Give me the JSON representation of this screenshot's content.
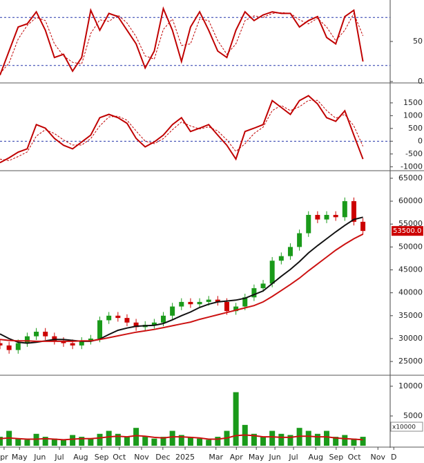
{
  "chart_data": [
    {
      "type": "line",
      "xlim": [
        0,
        86
      ],
      "ylim": [
        0,
        100
      ],
      "yticks": [
        0,
        50
      ],
      "hlines": [
        80,
        20
      ],
      "hline_color": "#2233aa",
      "x": [
        0,
        2,
        4,
        6,
        8,
        10,
        12,
        14,
        16,
        18,
        20,
        22,
        24,
        26,
        28,
        30,
        32,
        34,
        36,
        38,
        40,
        42,
        44,
        46,
        48,
        50,
        52,
        54,
        56,
        58,
        60,
        62,
        64,
        66,
        68,
        70,
        72,
        74,
        76,
        78,
        80
      ],
      "series": [
        {
          "color": "#c00000",
          "style": "solid",
          "values": [
            8,
            38,
            68,
            72,
            87,
            64,
            30,
            34,
            13,
            30,
            89,
            64,
            85,
            81,
            64,
            47,
            17,
            38,
            91,
            64,
            25,
            68,
            87,
            64,
            38,
            30,
            64,
            87,
            76,
            83,
            87,
            85,
            85,
            68,
            76,
            81,
            55,
            47,
            81,
            89,
            25
          ]
        },
        {
          "color": "#c00000",
          "style": "dashed",
          "values": [
            10,
            23,
            53,
            70,
            80,
            76,
            47,
            32,
            24,
            22,
            60,
            77,
            75,
            83,
            73,
            56,
            32,
            28,
            65,
            78,
            45,
            47,
            78,
            76,
            51,
            34,
            47,
            76,
            82,
            80,
            85,
            86,
            85,
            77,
            72,
            79,
            68,
            51,
            64,
            85,
            57
          ]
        }
      ]
    },
    {
      "type": "line",
      "xlim": [
        0,
        86
      ],
      "ylim": [
        -1100,
        2200
      ],
      "yticks": [
        -1000,
        -500,
        0,
        500,
        1000,
        1500
      ],
      "hlines": [
        0
      ],
      "hline_color": "#2233aa",
      "x": [
        0,
        2,
        4,
        6,
        8,
        10,
        12,
        14,
        16,
        18,
        20,
        22,
        24,
        26,
        28,
        30,
        32,
        34,
        36,
        38,
        40,
        42,
        44,
        46,
        48,
        50,
        52,
        54,
        56,
        58,
        60,
        62,
        64,
        66,
        68,
        70,
        72,
        74,
        76,
        78,
        80
      ],
      "series": [
        {
          "color": "#c00000",
          "style": "solid",
          "values": [
            -840,
            -650,
            -430,
            -300,
            650,
            510,
            110,
            -160,
            -300,
            -30,
            240,
            920,
            1050,
            920,
            700,
            110,
            -220,
            -30,
            240,
            650,
            920,
            380,
            510,
            650,
            240,
            -160,
            -700,
            380,
            510,
            650,
            1590,
            1320,
            1050,
            1590,
            1780,
            1460,
            920,
            780,
            1190,
            240,
            -700
          ]
        },
        {
          "color": "#c00000",
          "style": "dashed",
          "values": [
            -700,
            -760,
            -600,
            -420,
            200,
            450,
            300,
            50,
            -150,
            -150,
            100,
            600,
            950,
            980,
            820,
            400,
            0,
            -100,
            100,
            450,
            750,
            600,
            480,
            560,
            400,
            50,
            -400,
            -100,
            300,
            550,
            1200,
            1400,
            1200,
            1350,
            1600,
            1600,
            1200,
            900,
            1050,
            600,
            -200
          ]
        }
      ]
    },
    {
      "type": "candlestick",
      "xlim": [
        0,
        86
      ],
      "ylim": [
        22300,
        66200
      ],
      "yticks": [
        25000,
        30000,
        35000,
        40000,
        45000,
        50000,
        55000,
        60000,
        65000
      ],
      "up_color": "#1a9a1a",
      "down_color": "#cc0000",
      "x": [
        0,
        2,
        4,
        6,
        8,
        10,
        12,
        14,
        16,
        18,
        20,
        22,
        24,
        26,
        28,
        30,
        32,
        34,
        36,
        38,
        40,
        42,
        44,
        46,
        48,
        50,
        52,
        54,
        56,
        58,
        60,
        62,
        64,
        66,
        68,
        70,
        72,
        74,
        76,
        78,
        80
      ],
      "open": [
        29000,
        28500,
        27500,
        29000,
        30500,
        31500,
        30500,
        29500,
        29000,
        28500,
        29500,
        30000,
        34000,
        35000,
        34500,
        33500,
        32500,
        33000,
        33500,
        35000,
        37000,
        38000,
        37500,
        38000,
        38500,
        38000,
        36000,
        37000,
        39000,
        41000,
        42000,
        47000,
        48000,
        50000,
        53000,
        57000,
        56000,
        57000,
        56500,
        60000,
        55500
      ],
      "high": [
        29800,
        29300,
        29800,
        31300,
        32300,
        32300,
        31300,
        30300,
        29800,
        30300,
        30800,
        34800,
        35800,
        35800,
        35300,
        34300,
        33800,
        34300,
        35800,
        37800,
        38800,
        38800,
        38800,
        39300,
        39300,
        38800,
        37800,
        39800,
        41800,
        42800,
        47800,
        48800,
        50800,
        53800,
        57800,
        57800,
        57800,
        57800,
        60800,
        60800,
        56300
      ],
      "low": [
        27700,
        26700,
        26700,
        28200,
        29700,
        29700,
        28700,
        28200,
        27700,
        27700,
        28700,
        29200,
        33200,
        33700,
        32700,
        31700,
        31700,
        32200,
        32700,
        34200,
        36200,
        36700,
        36700,
        37200,
        37200,
        35200,
        35200,
        36200,
        38200,
        40200,
        41200,
        46200,
        47200,
        49200,
        52200,
        55200,
        55200,
        55700,
        55700,
        54700,
        52700
      ],
      "close": [
        28500,
        27500,
        29000,
        30500,
        31500,
        30500,
        29500,
        29000,
        28500,
        29500,
        30000,
        34000,
        35000,
        34500,
        33500,
        32500,
        33000,
        33500,
        35000,
        37000,
        38000,
        37500,
        38000,
        38500,
        38000,
        36000,
        37000,
        39000,
        41000,
        42000,
        47000,
        48000,
        50000,
        53000,
        57000,
        56000,
        57000,
        56500,
        60000,
        55500,
        53500
      ],
      "series": [
        {
          "color": "#111111",
          "style": "solid",
          "values": [
            31000,
            30000,
            29200,
            29000,
            29200,
            29500,
            29800,
            29800,
            29600,
            29400,
            29400,
            29900,
            30900,
            31800,
            32300,
            32700,
            32800,
            32900,
            33300,
            34100,
            35000,
            35800,
            36800,
            37500,
            38000,
            38200,
            38400,
            38800,
            39600,
            40400,
            42000,
            43600,
            45100,
            46800,
            48700,
            50300,
            51800,
            53300,
            54700,
            56000,
            56500
          ]
        },
        {
          "color": "#cc1111",
          "style": "solid",
          "values": [
            29800,
            29600,
            29500,
            29500,
            29400,
            29400,
            29400,
            29400,
            29400,
            29500,
            29500,
            29800,
            30200,
            30600,
            31000,
            31400,
            31700,
            32000,
            32400,
            32800,
            33200,
            33600,
            34200,
            34700,
            35200,
            35700,
            36200,
            36700,
            37200,
            38000,
            39200,
            40500,
            41800,
            43200,
            44800,
            46300,
            47800,
            49300,
            50600,
            51800,
            52800
          ]
        }
      ],
      "last_price": {
        "value": 53500,
        "label": "53500.0"
      },
      "last_price_color": "#cc0000"
    },
    {
      "type": "bar",
      "xlim": [
        0,
        86
      ],
      "ylim": [
        0,
        11500
      ],
      "yticks": [
        5000,
        10000
      ],
      "unit_label": "x10000",
      "color": "#1a9a1a",
      "x": [
        0,
        2,
        4,
        6,
        8,
        10,
        12,
        14,
        16,
        18,
        20,
        22,
        24,
        26,
        28,
        30,
        32,
        34,
        36,
        38,
        40,
        42,
        44,
        46,
        48,
        50,
        52,
        54,
        56,
        58,
        60,
        62,
        64,
        66,
        68,
        70,
        72,
        74,
        76,
        78,
        80
      ],
      "values": [
        1500,
        2500,
        1200,
        1000,
        2000,
        1500,
        1200,
        1000,
        1800,
        1500,
        1200,
        2000,
        2500,
        2000,
        1500,
        3000,
        1500,
        1200,
        1500,
        2500,
        1800,
        1500,
        1200,
        1000,
        1500,
        2500,
        9000,
        3500,
        2000,
        1500,
        2500,
        2000,
        1800,
        3000,
        2500,
        2000,
        2500,
        1500,
        1800,
        1200,
        1500
      ],
      "series": [
        {
          "color": "#cc1111",
          "style": "solid",
          "values": [
            1200,
            1300,
            1200,
            1100,
            1100,
            1200,
            1100,
            1000,
            1100,
            1200,
            1200,
            1300,
            1500,
            1600,
            1500,
            1700,
            1600,
            1400,
            1300,
            1500,
            1500,
            1400,
            1300,
            1100,
            1100,
            1300,
            1700,
            1800,
            1700,
            1500,
            1500,
            1400,
            1400,
            1600,
            1600,
            1500,
            1500,
            1300,
            1200,
            1100,
            1000
          ]
        }
      ],
      "xticks": [
        {
          "value": 0.9,
          "label": "pr"
        },
        {
          "value": 4.3,
          "label": "May"
        },
        {
          "value": 8.8,
          "label": "Jun"
        },
        {
          "value": 13.1,
          "label": "Jul"
        },
        {
          "value": 17.8,
          "label": "Aug"
        },
        {
          "value": 22.4,
          "label": "Sep"
        },
        {
          "value": 26.3,
          "label": "Oct"
        },
        {
          "value": 31.2,
          "label": "Nov"
        },
        {
          "value": 35.9,
          "label": "Dec"
        },
        {
          "value": 40.8,
          "label": "2025"
        },
        {
          "value": 47.6,
          "label": "Mar"
        },
        {
          "value": 52.1,
          "label": "Apr"
        },
        {
          "value": 56.5,
          "label": "May"
        },
        {
          "value": 60.6,
          "label": "Jun"
        },
        {
          "value": 64.7,
          "label": "Jul"
        },
        {
          "value": 69.6,
          "label": "Aug"
        },
        {
          "value": 74.1,
          "label": "Sep"
        },
        {
          "value": 78.1,
          "label": "Oct"
        },
        {
          "value": 83.3,
          "label": "Nov"
        },
        {
          "value": 86.8,
          "label": "D"
        }
      ]
    }
  ]
}
